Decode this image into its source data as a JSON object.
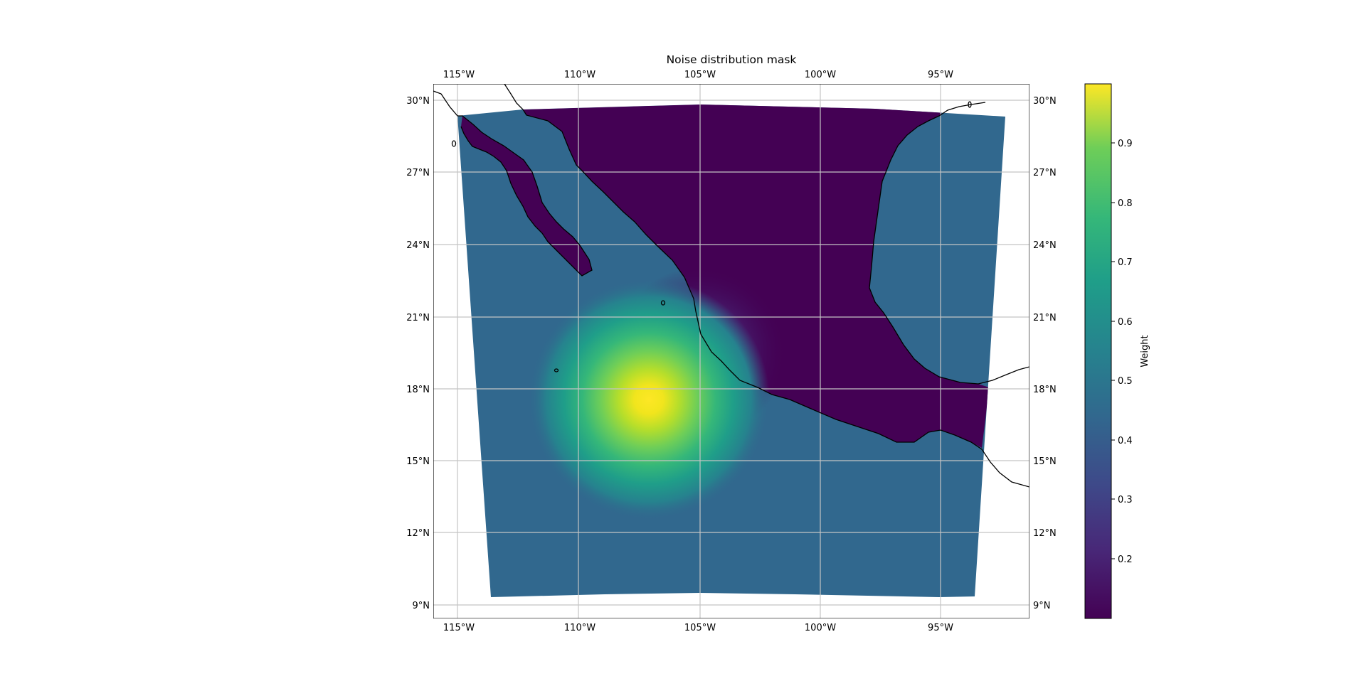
{
  "title": "Noise distribution mask",
  "colorbar": {
    "label": "Weight",
    "colormap": "viridis",
    "range": [
      0.1,
      1.0
    ],
    "ticks": [
      {
        "value": 0.2,
        "label": "0.2"
      },
      {
        "value": 0.3,
        "label": "0.3"
      },
      {
        "value": 0.4,
        "label": "0.4"
      },
      {
        "value": 0.5,
        "label": "0.5"
      },
      {
        "value": 0.6,
        "label": "0.6"
      },
      {
        "value": 0.7,
        "label": "0.7"
      },
      {
        "value": 0.8,
        "label": "0.8"
      },
      {
        "value": 0.9,
        "label": "0.9"
      }
    ]
  },
  "map": {
    "lon_range": [
      -116,
      -91.2
    ],
    "lat_range": [
      8.5,
      30.7
    ],
    "gridlines": true,
    "lon_ticks": [
      {
        "value": -115,
        "label": "115°W"
      },
      {
        "value": -110,
        "label": "110°W"
      },
      {
        "value": -105,
        "label": "105°W"
      },
      {
        "value": -100,
        "label": "100°W"
      },
      {
        "value": -95,
        "label": "95°W"
      }
    ],
    "lat_ticks": [
      {
        "value": 30,
        "label": "30°N"
      },
      {
        "value": 27,
        "label": "27°N"
      },
      {
        "value": 24,
        "label": "24°N"
      },
      {
        "value": 21,
        "label": "21°N"
      },
      {
        "value": 18,
        "label": "18°N"
      },
      {
        "value": 15,
        "label": "15°N"
      },
      {
        "value": 12,
        "label": "12°N"
      },
      {
        "value": 9,
        "label": "9°N"
      }
    ],
    "land_weight": 0.1,
    "ocean_weight": 0.42,
    "peak": {
      "lon": -107.1,
      "lat": 17.4,
      "weight": 1.0
    },
    "land_color": "#440154",
    "ocean_color": "#31688e",
    "peak_color": "#fde725"
  }
}
